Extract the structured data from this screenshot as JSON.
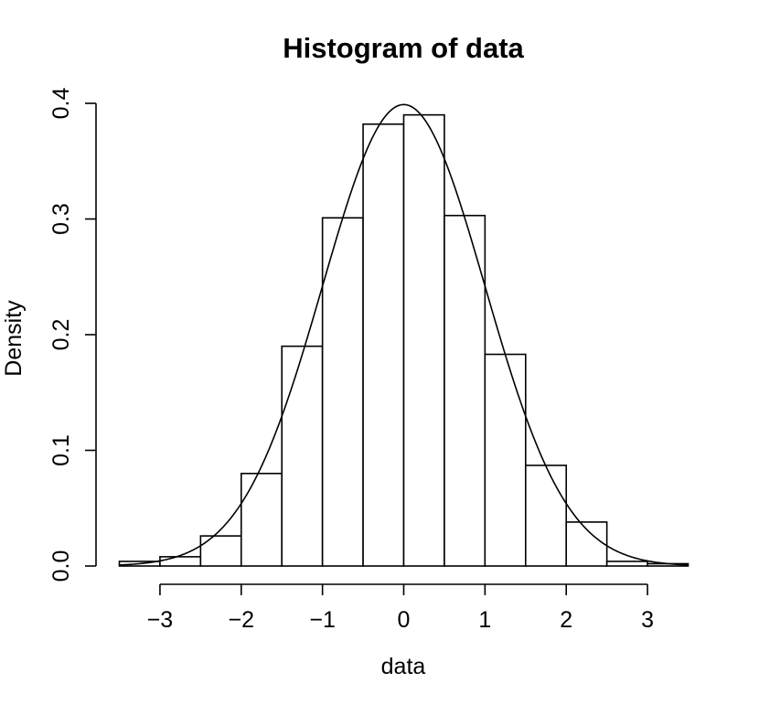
{
  "chart_data": {
    "type": "bar",
    "title": "Histogram of data",
    "xlabel": "data",
    "ylabel": "Density",
    "xlim": [
      -3.5,
      3.5
    ],
    "ylim": [
      0,
      0.4
    ],
    "x_ticks": [
      -3,
      -2,
      -1,
      0,
      1,
      2,
      3
    ],
    "x_tick_labels": [
      "−3",
      "−2",
      "−1",
      "0",
      "1",
      "2",
      "3"
    ],
    "y_ticks": [
      0,
      0.1,
      0.2,
      0.3,
      0.4
    ],
    "y_tick_labels": [
      "0.0",
      "0.1",
      "0.2",
      "0.3",
      "0.4"
    ],
    "bins": [
      {
        "start": -3.5,
        "end": -3.0,
        "density": 0.004
      },
      {
        "start": -3.0,
        "end": -2.5,
        "density": 0.008
      },
      {
        "start": -2.5,
        "end": -2.0,
        "density": 0.026
      },
      {
        "start": -2.0,
        "end": -1.5,
        "density": 0.08
      },
      {
        "start": -1.5,
        "end": -1.0,
        "density": 0.19
      },
      {
        "start": -1.0,
        "end": -0.5,
        "density": 0.301
      },
      {
        "start": -0.5,
        "end": 0.0,
        "density": 0.382
      },
      {
        "start": 0.0,
        "end": 0.5,
        "density": 0.39
      },
      {
        "start": 0.5,
        "end": 1.0,
        "density": 0.303
      },
      {
        "start": 1.0,
        "end": 1.5,
        "density": 0.183
      },
      {
        "start": 1.5,
        "end": 2.0,
        "density": 0.087
      },
      {
        "start": 2.0,
        "end": 2.5,
        "density": 0.038
      },
      {
        "start": 2.5,
        "end": 3.0,
        "density": 0.004
      },
      {
        "start": 3.0,
        "end": 3.5,
        "density": 0.002
      }
    ],
    "overlay_curve": {
      "type": "normal density",
      "mean": 0,
      "sd": 1
    },
    "grid": false,
    "legend": "none"
  }
}
